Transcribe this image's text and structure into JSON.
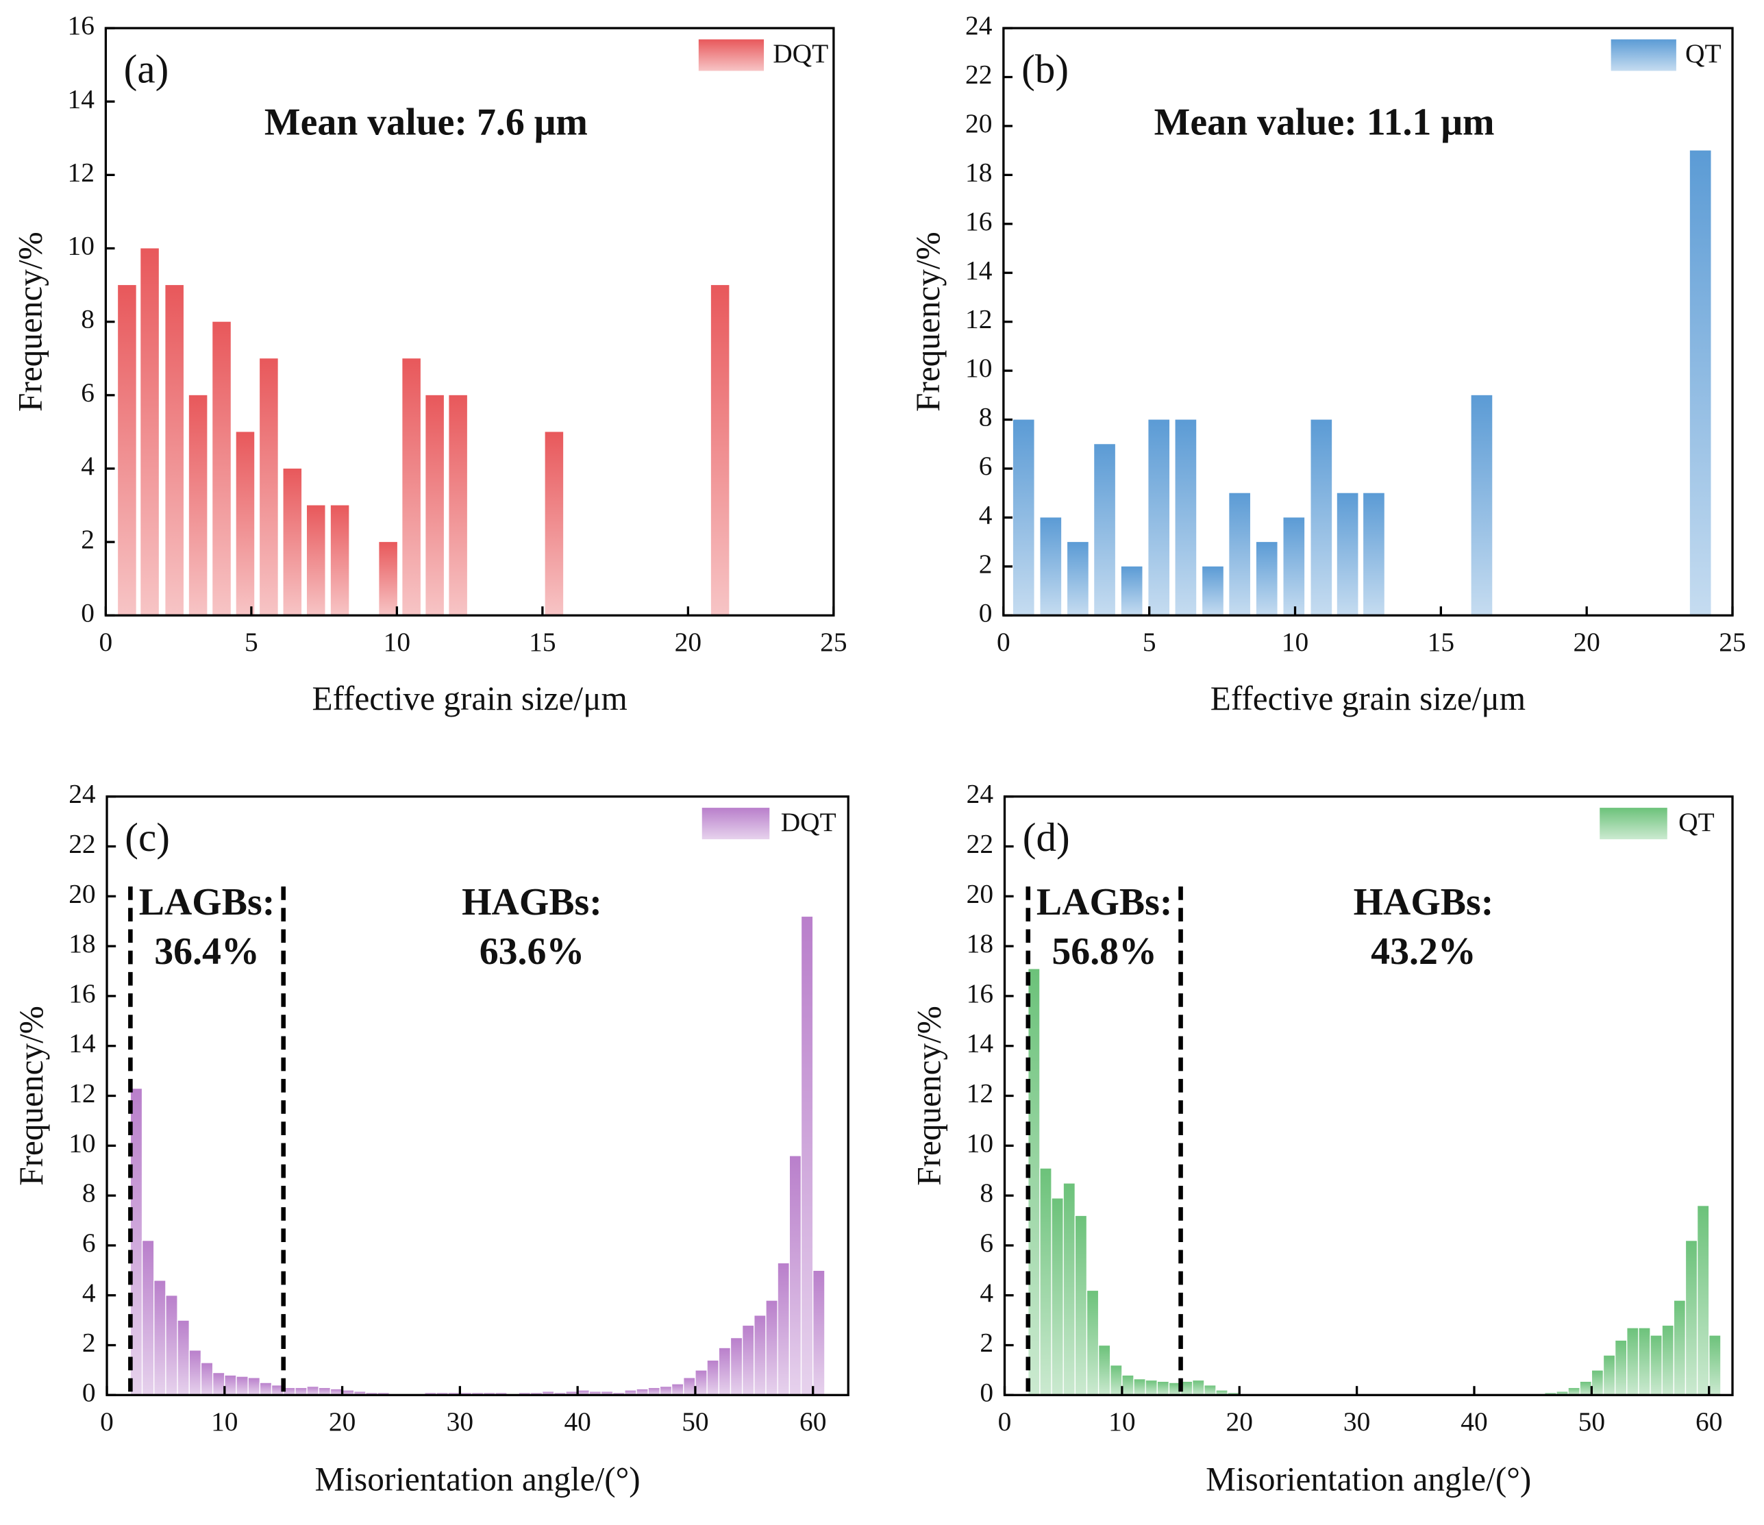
{
  "chart_data": [
    {
      "type": "bar",
      "panel_label": "(a)",
      "annotation": "Mean value: 7.6 μm",
      "xlabel": "Effective grain size/μm",
      "ylabel": "Frequency/%",
      "x": [
        0.73,
        1.51,
        2.36,
        3.17,
        3.98,
        4.79,
        5.6,
        6.41,
        7.22,
        8.04,
        9.7,
        10.5,
        11.3,
        12.1,
        15.4,
        21.1
      ],
      "series": [
        {
          "name": "DQT",
          "color": "#e8585b",
          "values": [
            9,
            10,
            9,
            6,
            8,
            5,
            7,
            4,
            3,
            3,
            2,
            7,
            6,
            6,
            5,
            9
          ]
        }
      ],
      "xlim": [
        0,
        25
      ],
      "xticks": [
        0,
        5,
        10,
        15,
        20,
        25
      ],
      "ylim": [
        0,
        16
      ],
      "yticks": [
        0,
        2,
        4,
        6,
        8,
        10,
        12,
        14,
        16
      ]
    },
    {
      "type": "bar",
      "panel_label": "(b)",
      "annotation": "Mean value: 11.1 μm",
      "xlabel": "Effective grain size/μm",
      "ylabel": "Frequency/%",
      "x": [
        0.69,
        1.62,
        2.55,
        3.47,
        4.4,
        5.33,
        6.25,
        7.18,
        8.1,
        9.03,
        9.96,
        10.9,
        11.8,
        12.7,
        16.4,
        23.9
      ],
      "series": [
        {
          "name": "QT",
          "color": "#5b9bd5",
          "values": [
            8,
            4,
            3,
            7,
            2,
            8,
            8,
            2,
            5,
            3,
            4,
            8,
            5,
            5,
            9,
            19
          ]
        }
      ],
      "xlim": [
        0,
        25
      ],
      "xticks": [
        0,
        5,
        10,
        15,
        20,
        25
      ],
      "ylim": [
        0,
        24
      ],
      "yticks": [
        0,
        2,
        4,
        6,
        8,
        10,
        12,
        14,
        16,
        18,
        20,
        22,
        24
      ]
    },
    {
      "type": "histogram",
      "panel_label": "(c)",
      "annotations": [
        "LAGBs:",
        "36.4%",
        "HAGBs:",
        "63.6%"
      ],
      "dividers": [
        2,
        15
      ],
      "xlabel": "Misorientation angle/(°)",
      "ylabel": "Frequency/%",
      "bins": [
        2,
        3,
        4,
        5,
        6,
        7,
        8,
        9,
        10,
        11,
        12,
        13,
        14,
        15,
        16,
        17,
        18,
        19,
        20,
        21,
        22,
        23,
        24,
        25,
        26,
        27,
        28,
        29,
        30,
        31,
        32,
        33,
        34,
        35,
        36,
        37,
        38,
        39,
        40,
        41,
        42,
        43,
        44,
        45,
        46,
        47,
        48,
        49,
        50,
        51,
        52,
        53,
        54,
        55,
        56,
        57,
        58,
        59,
        60,
        61
      ],
      "series": [
        {
          "name": "DQT",
          "color": "#b97fcb",
          "values": [
            12.3,
            6.2,
            4.6,
            4.0,
            3.0,
            1.8,
            1.3,
            0.9,
            0.8,
            0.75,
            0.7,
            0.5,
            0.4,
            0.3,
            0.3,
            0.35,
            0.3,
            0.25,
            0.2,
            0.15,
            0.1,
            0.1,
            0.05,
            0.05,
            0.05,
            0.1,
            0.1,
            0.1,
            0.1,
            0.1,
            0.1,
            0.1,
            0.05,
            0.1,
            0.1,
            0.15,
            0.1,
            0.15,
            0.2,
            0.15,
            0.15,
            0.1,
            0.2,
            0.25,
            0.3,
            0.35,
            0.45,
            0.7,
            1.0,
            1.4,
            1.9,
            2.3,
            2.8,
            3.2,
            3.8,
            5.3,
            9.6,
            19.2,
            5.0
          ]
        }
      ],
      "xlim": [
        0,
        63
      ],
      "xticks": [
        0,
        10,
        20,
        30,
        40,
        50,
        60
      ],
      "ylim": [
        0,
        24
      ],
      "yticks": [
        0,
        2,
        4,
        6,
        8,
        10,
        12,
        14,
        16,
        18,
        20,
        22,
        24
      ]
    },
    {
      "type": "histogram",
      "panel_label": "(d)",
      "annotations": [
        "LAGBs:",
        "56.8%",
        "HAGBs:",
        "43.2%"
      ],
      "dividers": [
        2,
        15
      ],
      "xlabel": "Misorientation angle/(°)",
      "ylabel": "Frequency/%",
      "bins": [
        2,
        3,
        4,
        5,
        6,
        7,
        8,
        9,
        10,
        11,
        12,
        13,
        14,
        15,
        16,
        17,
        18,
        19,
        20,
        21,
        22,
        23,
        24,
        25,
        26,
        27,
        28,
        29,
        30,
        31,
        32,
        33,
        34,
        35,
        36,
        37,
        38,
        39,
        40,
        41,
        42,
        43,
        44,
        45,
        46,
        47,
        48,
        49,
        50,
        51,
        52,
        53,
        54,
        55,
        56,
        57,
        58,
        59,
        60,
        61
      ],
      "series": [
        {
          "name": "QT",
          "color": "#6cc27a",
          "values": [
            17.1,
            9.1,
            7.9,
            8.5,
            7.2,
            4.2,
            2.0,
            1.2,
            0.8,
            0.65,
            0.6,
            0.55,
            0.5,
            0.55,
            0.6,
            0.4,
            0.2,
            0.1,
            0.05,
            0.05,
            0.05,
            0.05,
            0.05,
            0.05,
            0.05,
            0.05,
            0.05,
            0.05,
            0.05,
            0.05,
            0.05,
            0.05,
            0.05,
            0.05,
            0.05,
            0.05,
            0.05,
            0.05,
            0.05,
            0.05,
            0.05,
            0.05,
            0.05,
            0.05,
            0.1,
            0.15,
            0.3,
            0.55,
            1.0,
            1.6,
            2.2,
            2.7,
            2.7,
            2.4,
            2.8,
            3.8,
            6.2,
            7.6,
            2.4
          ]
        }
      ],
      "xlim": [
        0,
        62
      ],
      "xticks": [
        0,
        10,
        20,
        30,
        40,
        50,
        60
      ],
      "ylim": [
        0,
        24
      ],
      "yticks": [
        0,
        2,
        4,
        6,
        8,
        10,
        12,
        14,
        16,
        18,
        20,
        22,
        24
      ]
    }
  ]
}
